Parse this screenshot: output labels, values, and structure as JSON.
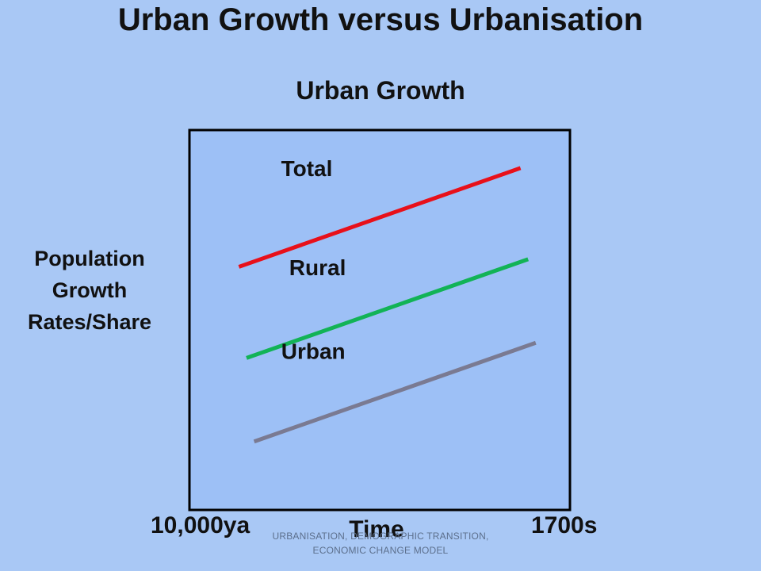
{
  "title": "Urban Growth versus Urbanisation",
  "footer": "URBANISATION, DEMOGRAPHIC TRANSITION, ECONOMIC CHANGE MODEL",
  "chart_data": {
    "type": "line",
    "title": "Urban Growth",
    "xlabel": "Time",
    "ylabel": "Population Growth Rates/Share",
    "x_ticks": [
      "10,000ya",
      "1700s"
    ],
    "y_ticks": [],
    "grid": false,
    "colors": {
      "Total": "#e8101a",
      "Rural": "#12b356",
      "Urban": "#7a7a92"
    },
    "series": [
      {
        "name": "Total",
        "x": [
          0.13,
          0.87
        ],
        "y": [
          0.64,
          0.9
        ]
      },
      {
        "name": "Rural",
        "x": [
          0.15,
          0.89
        ],
        "y": [
          0.4,
          0.66
        ]
      },
      {
        "name": "Urban",
        "x": [
          0.17,
          0.91
        ],
        "y": [
          0.18,
          0.44
        ]
      }
    ]
  }
}
